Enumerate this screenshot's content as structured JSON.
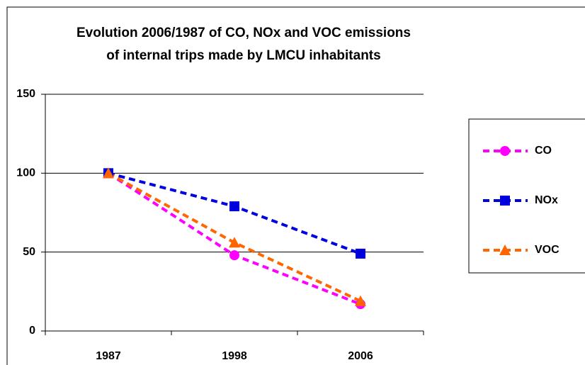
{
  "chart_data": {
    "type": "line",
    "title": [
      "Evolution 2006/1987 of CO, NOx and VOC emissions",
      "of internal trips made by LMCU inhabitants"
    ],
    "categories": [
      "1987",
      "1998",
      "2006"
    ],
    "series": [
      {
        "name": "CO",
        "color": "#ff00ff",
        "marker": "circle",
        "values": [
          100,
          48,
          17
        ]
      },
      {
        "name": "NOx",
        "color": "#0000dd",
        "marker": "square",
        "values": [
          100,
          79,
          49
        ]
      },
      {
        "name": "VOC",
        "color": "#ff6600",
        "marker": "triangle",
        "values": [
          100,
          56,
          19
        ]
      }
    ],
    "ylim": [
      0,
      150
    ],
    "yticks": [
      0,
      50,
      100,
      150
    ],
    "grid": true,
    "legend": "right"
  }
}
